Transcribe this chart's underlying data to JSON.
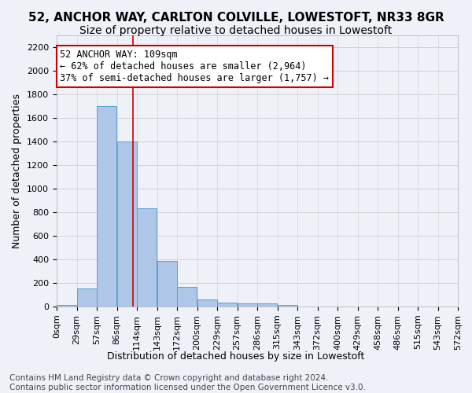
{
  "title_line1": "52, ANCHOR WAY, CARLTON COLVILLE, LOWESTOFT, NR33 8GR",
  "title_line2": "Size of property relative to detached houses in Lowestoft",
  "xlabel": "Distribution of detached houses by size in Lowestoft",
  "ylabel": "Number of detached properties",
  "bar_values": [
    15,
    155,
    1700,
    1400,
    835,
    385,
    165,
    60,
    35,
    28,
    28,
    15,
    0,
    0,
    0,
    0,
    0,
    0,
    0,
    0
  ],
  "bin_labels": [
    "0sqm",
    "29sqm",
    "57sqm",
    "86sqm",
    "114sqm",
    "143sqm",
    "172sqm",
    "200sqm",
    "229sqm",
    "257sqm",
    "286sqm",
    "315sqm",
    "343sqm",
    "372sqm",
    "400sqm",
    "429sqm",
    "458sqm",
    "486sqm",
    "515sqm",
    "543sqm",
    "572sqm"
  ],
  "bar_color": "#aec6e8",
  "bar_edge_color": "#5a9fd4",
  "grid_color": "#cccccc",
  "bg_color": "#eef2f8",
  "vline_x": 109,
  "vline_color": "#cc0000",
  "annotation_text": "52 ANCHOR WAY: 109sqm\n← 62% of detached houses are smaller (2,964)\n37% of semi-detached houses are larger (1,757) →",
  "annotation_box_color": "#ffffff",
  "annotation_border_color": "#cc0000",
  "ylim": [
    0,
    2300
  ],
  "yticks": [
    0,
    200,
    400,
    600,
    800,
    1000,
    1200,
    1400,
    1600,
    1800,
    2000,
    2200
  ],
  "footer_line1": "Contains HM Land Registry data © Crown copyright and database right 2024.",
  "footer_line2": "Contains public sector information licensed under the Open Government Licence v3.0.",
  "title_fontsize": 11,
  "subtitle_fontsize": 10,
  "axis_label_fontsize": 9,
  "tick_fontsize": 8,
  "annotation_fontsize": 8.5,
  "footer_fontsize": 7.5,
  "bin_width": 28.57,
  "n_bins": 20
}
